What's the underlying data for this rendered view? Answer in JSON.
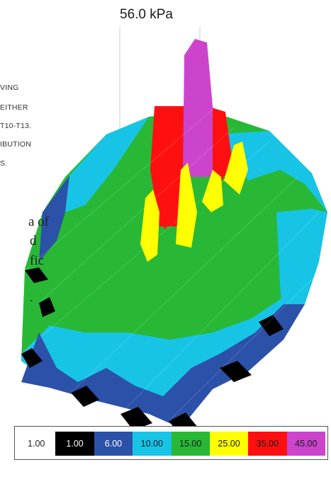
{
  "peak_label": "56.0 kPa",
  "background_text": {
    "lines": [
      "VING",
      "EITHER",
      "T10-T13.",
      "IBUTION",
      "S."
    ],
    "body_lines": [
      "a of",
      "d",
      "fic",
      "."
    ]
  },
  "chart_data": {
    "type": "heatmap",
    "subtype": "3d-surface",
    "title": "",
    "annotations": [
      "56.0 kPa"
    ],
    "peak_value": 56.0,
    "unit": "kPa",
    "color_scale": [
      {
        "label": "1.00",
        "value": 1.0,
        "color": "#ffffff",
        "text_color": "#222222"
      },
      {
        "label": "1.00",
        "value": 1.0,
        "color": "#000000",
        "text_color": "#ffffff"
      },
      {
        "label": "6.00",
        "value": 6.0,
        "color": "#2c51a8",
        "text_color": "#ffffff"
      },
      {
        "label": "10.00",
        "value": 10.0,
        "color": "#17c4e6",
        "text_color": "#1a1a1a"
      },
      {
        "label": "15.00",
        "value": 15.0,
        "color": "#28b836",
        "text_color": "#1a1a1a"
      },
      {
        "label": "25.00",
        "value": 25.0,
        "color": "#ffff00",
        "text_color": "#1a1a1a"
      },
      {
        "label": "35.00",
        "value": 35.0,
        "color": "#ff1010",
        "text_color": "#1a1a1a"
      },
      {
        "label": "45.00",
        "value": 45.0,
        "color": "#cc44cc",
        "text_color": "#1a1a1a"
      }
    ]
  }
}
